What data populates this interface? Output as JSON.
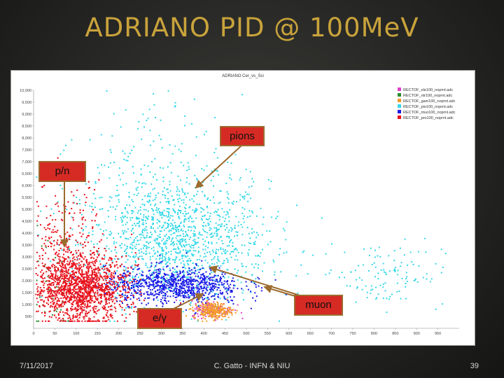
{
  "slide": {
    "title": "ADRIANO PID @ 100MeV",
    "footer_date": "7/11/2017",
    "footer_author": "C. Gatto - INFN & NIU",
    "page_number": "39"
  },
  "annotations": {
    "pions": "pions",
    "pn": "p/n",
    "muon": "muon",
    "egamma": "e/γ"
  },
  "colors": {
    "title": "#c9a33b",
    "callout_fill": "#d62a24",
    "arrow": "#9c6b2e"
  },
  "chart_data": {
    "type": "scatter",
    "title": "ADRIANO Cer_vs_Sci",
    "xlabel": "",
    "ylabel": "",
    "xlim": [
      0,
      1000
    ],
    "ylim": [
      0,
      10000
    ],
    "x_ticks": [
      0,
      50,
      100,
      150,
      200,
      250,
      300,
      350,
      400,
      450,
      500,
      550,
      600,
      650,
      700,
      750,
      800,
      850,
      900,
      950
    ],
    "y_ticks": [
      10000,
      9500,
      9000,
      8500,
      8000,
      7500,
      7000,
      6500,
      6000,
      5500,
      5000,
      4500,
      4000,
      3500,
      3000,
      2500,
      2000,
      1500,
      1000,
      500
    ],
    "y_tick_labels": [
      "10,000",
      "9,500",
      "9,000",
      "8,500",
      "8,000",
      "7,500",
      "7,000",
      "6,500",
      "6,000",
      "5,500",
      "5,000",
      "4,500",
      "4,000",
      "3,500",
      "3,000",
      "2,500",
      "2,000",
      "1,500",
      "1,000",
      "500"
    ],
    "grid": false,
    "legend_position": "top-right",
    "series": [
      {
        "name": "RECTOF_ele100_noprnt.adc",
        "color": "#e040c8",
        "clusters": [
          {
            "x": 420,
            "y": 800,
            "sx": 25,
            "sy": 180,
            "n": 120
          }
        ]
      },
      {
        "name": "RECTOF_ntr100_noprnt.adc",
        "color": "#2e8b2e",
        "clusters": [
          {
            "x": 30,
            "y": 1800,
            "sx": 40,
            "sy": 1500,
            "n": 60
          }
        ]
      },
      {
        "name": "RECTOF_gam100_noprnt.adc",
        "color": "#f39a2a",
        "clusters": [
          {
            "x": 420,
            "y": 750,
            "sx": 22,
            "sy": 170,
            "n": 260
          }
        ]
      },
      {
        "name": "RECTOF_pio100_noprnt.adc",
        "color": "#35d8e8",
        "clusters": [
          {
            "x": 330,
            "y": 3600,
            "sx": 110,
            "sy": 1300,
            "n": 1400
          },
          {
            "x": 820,
            "y": 2300,
            "sx": 75,
            "sy": 700,
            "n": 130
          },
          {
            "x": 270,
            "y": 6800,
            "sx": 110,
            "sy": 1500,
            "n": 160
          }
        ]
      },
      {
        "name": "RECTOF_muo100_noprnt.adc",
        "color": "#1a1ae6",
        "clusters": [
          {
            "x": 330,
            "y": 1800,
            "sx": 80,
            "sy": 380,
            "n": 900
          }
        ]
      },
      {
        "name": "RECTOF_pro100_noprnt.adc",
        "color": "#e8101a",
        "clusters": [
          {
            "x": 110,
            "y": 1700,
            "sx": 55,
            "sy": 700,
            "n": 1500
          },
          {
            "x": 70,
            "y": 3500,
            "sx": 45,
            "sy": 1300,
            "n": 250
          }
        ]
      }
    ]
  }
}
